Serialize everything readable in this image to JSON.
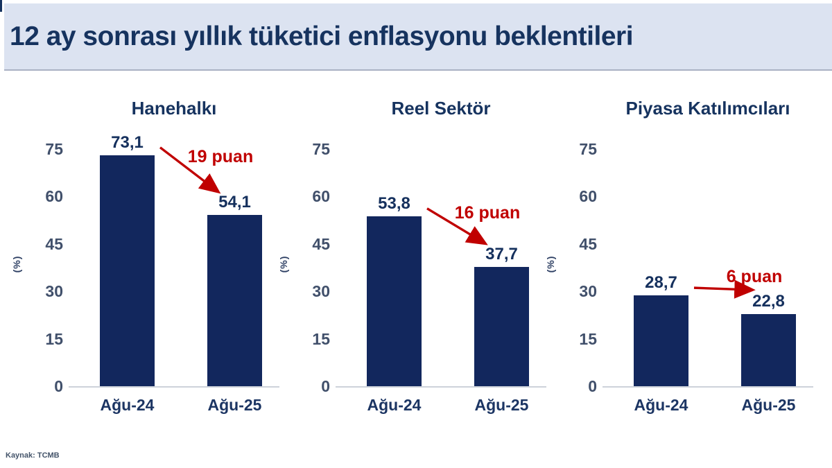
{
  "header": {
    "title": "12 ay sonrası yıllık tüketici enflasyonu beklentileri"
  },
  "footer": {
    "source": "Kaynak: TCMB"
  },
  "colors": {
    "bar_navy": "#12275d",
    "accent_red": "#c00000",
    "title_navy": "#16335f",
    "tick_gray_blue": "#41506b",
    "titlebar_bg": "#dce3f1"
  },
  "chart_data": [
    {
      "type": "bar",
      "title": "Hanehalkı",
      "ylabel": "(%)",
      "categories": [
        "Ağu-24",
        "Ağu-25"
      ],
      "values": [
        73.1,
        54.1
      ],
      "value_labels": [
        "73,1",
        "54,1"
      ],
      "change_label": "19 puan",
      "yticks": [
        0,
        15,
        30,
        45,
        60,
        75
      ],
      "ylim": [
        0,
        75
      ],
      "grid": "off",
      "legend": "none"
    },
    {
      "type": "bar",
      "title": "Reel Sektör",
      "ylabel": "(%)",
      "categories": [
        "Ağu-24",
        "Ağu-25"
      ],
      "values": [
        53.8,
        37.7
      ],
      "value_labels": [
        "53,8",
        "37,7"
      ],
      "change_label": "16 puan",
      "yticks": [
        0,
        15,
        30,
        45,
        60,
        75
      ],
      "ylim": [
        0,
        75
      ],
      "grid": "off",
      "legend": "none"
    },
    {
      "type": "bar",
      "title": "Piyasa Katılımcıları",
      "ylabel": "(%)",
      "categories": [
        "Ağu-24",
        "Ağu-25"
      ],
      "values": [
        28.7,
        22.8
      ],
      "value_labels": [
        "28,7",
        "22,8"
      ],
      "change_label": "6 puan",
      "yticks": [
        0,
        15,
        30,
        45,
        60,
        75
      ],
      "ylim": [
        0,
        75
      ],
      "grid": "off",
      "legend": "none"
    }
  ]
}
